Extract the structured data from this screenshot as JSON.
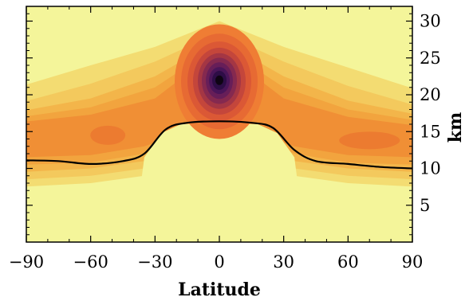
{
  "chart_data": {
    "type": "heatmap",
    "title": "",
    "xlabel": "Latitude",
    "ylabel": "km",
    "xlim": [
      -90,
      90
    ],
    "ylim": [
      0,
      32
    ],
    "x_ticks": [
      -90,
      -60,
      -30,
      0,
      30,
      60,
      90
    ],
    "x_tick_labels": [
      "−90",
      "−60",
      "−30",
      "0",
      "30",
      "60",
      "90"
    ],
    "y_ticks": [
      5,
      10,
      15,
      20,
      25,
      30
    ],
    "y_tick_labels": [
      "5",
      "10",
      "15",
      "20",
      "25",
      "30"
    ],
    "y_axis_side": "right",
    "colormap": "inferno_r (pale yellow low → orange → purple → black high)",
    "colorbar": "none",
    "filled_contour_peak": {
      "latitude": 0,
      "altitude_km": 22
    },
    "line_series": {
      "color": "#000000",
      "x": [
        -90,
        -75,
        -60,
        -45,
        -35,
        -25,
        -15,
        0,
        15,
        25,
        35,
        45,
        60,
        75,
        90
      ],
      "y": [
        11.1,
        11.0,
        10.6,
        11.0,
        12.0,
        15.3,
        16.2,
        16.4,
        16.2,
        15.5,
        12.5,
        11.0,
        10.6,
        10.2,
        10.0
      ]
    }
  }
}
